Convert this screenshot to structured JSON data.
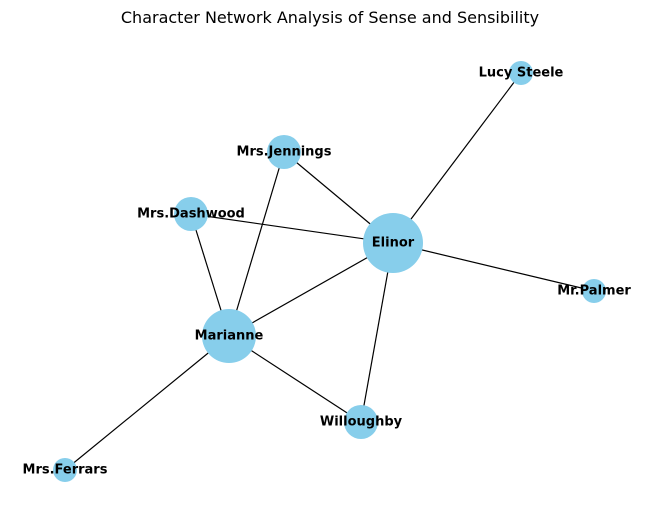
{
  "title": "Character Network Analysis of Sense and Sensibility",
  "colors": {
    "node_fill": "#87CEEB",
    "edge_stroke": "#000000",
    "label": "#000000"
  },
  "nodes": [
    {
      "id": "Elinor",
      "label": "Elinor",
      "degree": 6
    },
    {
      "id": "Marianne",
      "label": "Marianne",
      "degree": 5
    },
    {
      "id": "Willoughby",
      "label": "Willoughby",
      "degree": 2
    },
    {
      "id": "Mrs.Dashwood",
      "label": "Mrs.Dashwood",
      "degree": 2
    },
    {
      "id": "Mrs.Jennings",
      "label": "Mrs.Jennings",
      "degree": 2
    },
    {
      "id": "Lucy Steele",
      "label": "Lucy Steele",
      "degree": 1
    },
    {
      "id": "Mr.Palmer",
      "label": "Mr.Palmer",
      "degree": 1
    },
    {
      "id": "Mrs.Ferrars",
      "label": "Mrs.Ferrars",
      "degree": 1
    }
  ],
  "edges": [
    [
      "Elinor",
      "Marianne"
    ],
    [
      "Elinor",
      "Willoughby"
    ],
    [
      "Elinor",
      "Mrs.Dashwood"
    ],
    [
      "Elinor",
      "Mrs.Jennings"
    ],
    [
      "Elinor",
      "Lucy Steele"
    ],
    [
      "Elinor",
      "Mr.Palmer"
    ],
    [
      "Marianne",
      "Willoughby"
    ],
    [
      "Marianne",
      "Mrs.Dashwood"
    ],
    [
      "Marianne",
      "Mrs.Jennings"
    ],
    [
      "Marianne",
      "Mrs.Ferrars"
    ]
  ]
}
